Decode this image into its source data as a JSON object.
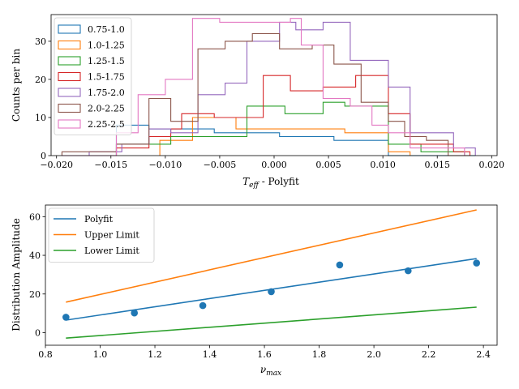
{
  "chart_data": [
    {
      "type": "histogram",
      "xlabel": "T_eff - Polyfit",
      "ylabel": "Counts per bin",
      "xlim": [
        -0.0205,
        0.0205
      ],
      "ylim": [
        0,
        37
      ],
      "xticks": [
        -0.02,
        -0.015,
        -0.01,
        -0.005,
        0.0,
        0.005,
        0.01,
        0.015,
        0.02
      ],
      "xtick_labels": [
        "−0.020",
        "−0.015",
        "−0.010",
        "−0.005",
        "0.000",
        "0.005",
        "0.010",
        "0.015",
        "0.020"
      ],
      "yticks": [
        0,
        10,
        20,
        30
      ],
      "legend_position": "upper-left",
      "series": [
        {
          "name": "0.75-1.0",
          "color": "#1f77b4",
          "edges": [
            -0.0145,
            -0.0115,
            -0.0055,
            0.0005,
            0.0055,
            0.0105,
            0.0185
          ],
          "counts": [
            8,
            7,
            6,
            5,
            4,
            0
          ]
        },
        {
          "name": "1.0-1.25",
          "color": "#ff7f0e",
          "edges": [
            -0.0105,
            -0.0075,
            -0.0035,
            0.0065,
            0.0105,
            0.0125
          ],
          "counts": [
            4,
            10,
            7,
            6,
            1
          ]
        },
        {
          "name": "1.25-1.5",
          "color": "#2ca02c",
          "edges": [
            -0.0145,
            -0.0115,
            -0.0095,
            -0.0075,
            -0.0025,
            0.001,
            0.0045,
            0.0065,
            0.0105,
            0.0135,
            0.0175
          ],
          "counts": [
            3,
            3,
            5,
            5,
            13,
            11,
            14,
            13,
            3,
            1
          ]
        },
        {
          "name": "1.5-1.75",
          "color": "#d62728",
          "edges": [
            -0.0145,
            -0.0115,
            -0.0095,
            -0.0085,
            -0.0055,
            -0.001,
            0.0015,
            0.0045,
            0.0075,
            0.0105,
            0.0125,
            0.0165,
            0.018
          ],
          "counts": [
            2,
            5,
            7,
            11,
            10,
            21,
            17,
            18,
            21,
            11,
            3,
            1
          ]
        },
        {
          "name": "1.75-2.0",
          "color": "#9467bd",
          "edges": [
            -0.017,
            -0.014,
            -0.0115,
            -0.0095,
            -0.007,
            -0.0045,
            -0.0025,
            0.0005,
            0.002,
            0.0045,
            0.007,
            0.0105,
            0.0125,
            0.0165,
            0.0185
          ],
          "counts": [
            1,
            3,
            7,
            6,
            16,
            19,
            30,
            35,
            33,
            35,
            25,
            18,
            6,
            2
          ]
        },
        {
          "name": "2.0-2.25",
          "color": "#8c564b",
          "edges": [
            -0.0195,
            -0.0145,
            -0.0115,
            -0.0095,
            -0.007,
            -0.0045,
            -0.002,
            0.0005,
            0.0035,
            0.0055,
            0.008,
            0.0105,
            0.012,
            0.014,
            0.016,
            0.018
          ],
          "counts": [
            1,
            3,
            15,
            9,
            28,
            30,
            32,
            28,
            29,
            24,
            14,
            9,
            5,
            4,
            0
          ]
        },
        {
          "name": "2.25-2.5",
          "color": "#e377c2",
          "edges": [
            -0.0195,
            -0.0145,
            -0.0125,
            -0.01,
            -0.0075,
            -0.005,
            -0.002,
            0.0015,
            0.0025,
            0.0045,
            0.007,
            0.009,
            0.0105,
            0.0125,
            0.0175
          ],
          "counts": [
            0,
            6,
            16,
            20,
            36,
            35,
            35,
            36,
            29,
            15,
            13,
            8,
            6,
            2
          ]
        }
      ]
    },
    {
      "type": "line+scatter",
      "xlabel": "ν_max",
      "ylabel": "Distribution Amplitude",
      "xlim": [
        0.8,
        2.45
      ],
      "ylim": [
        -6.5,
        66
      ],
      "xticks": [
        0.8,
        1.0,
        1.2,
        1.4,
        1.6,
        1.8,
        2.0,
        2.2,
        2.4
      ],
      "xtick_labels": [
        "0.8",
        "1.0",
        "1.2",
        "1.4",
        "1.6",
        "1.8",
        "2.0",
        "2.2",
        "2.4"
      ],
      "yticks": [
        0,
        20,
        40,
        60
      ],
      "legend_position": "upper-left",
      "series": [
        {
          "name": "Polyfit",
          "color": "#1f77b4",
          "x": [
            0.875,
            2.375
          ],
          "y": [
            6.5,
            38.3
          ]
        },
        {
          "name": "Upper Limit",
          "color": "#ff7f0e",
          "x": [
            0.875,
            2.375
          ],
          "y": [
            15.8,
            63.5
          ]
        },
        {
          "name": "Lower Limit",
          "color": "#2ca02c",
          "x": [
            0.875,
            2.375
          ],
          "y": [
            -2.8,
            13.2
          ]
        }
      ],
      "points": {
        "color": "#1f77b4",
        "x": [
          0.875,
          1.125,
          1.375,
          1.625,
          1.875,
          2.125,
          2.375
        ],
        "y": [
          8.0,
          10.2,
          14.0,
          21.2,
          35.0,
          32.0,
          36.0
        ]
      }
    }
  ]
}
